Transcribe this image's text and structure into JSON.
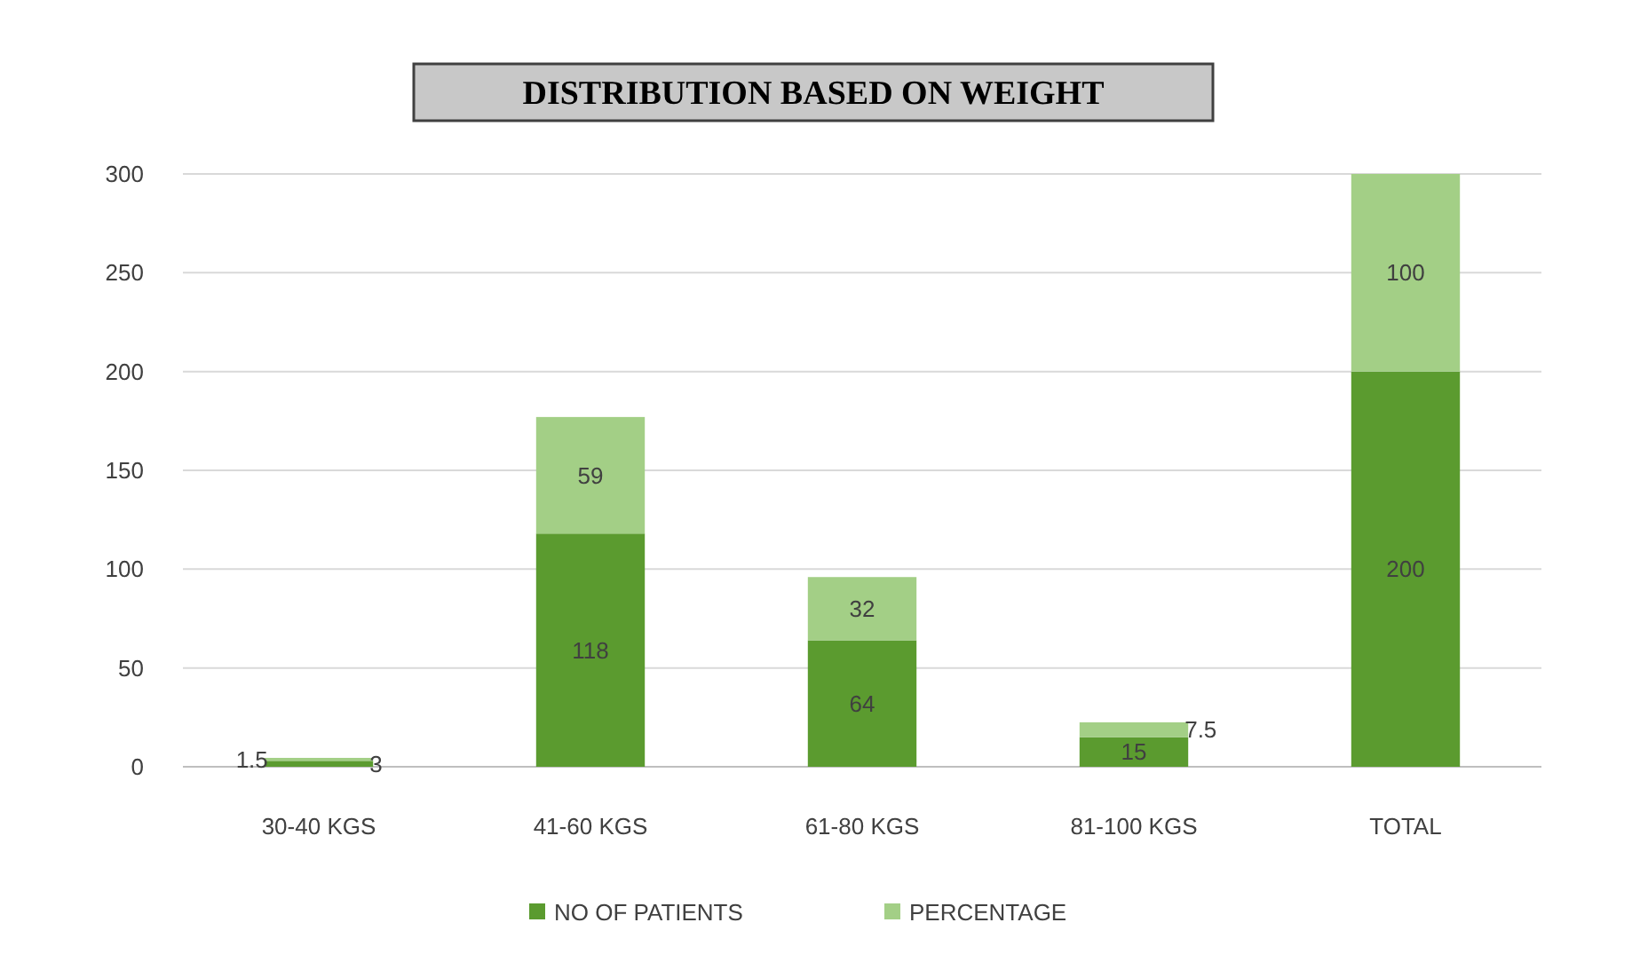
{
  "chart_data": {
    "type": "bar",
    "title": "DISTRIBUTION  BASED ON WEIGHT",
    "categories": [
      "30-40 KGS",
      "41-60 KGS",
      "61-80 KGS",
      "81-100 KGS",
      "TOTAL"
    ],
    "stacked": true,
    "series": [
      {
        "name": "NO OF PATIENTS",
        "color": "#5b9b2f",
        "values": [
          3,
          118,
          64,
          15,
          200
        ]
      },
      {
        "name": "PERCENTAGE",
        "color": "#a3cf86",
        "values": [
          1.5,
          59,
          32,
          7.5,
          100
        ]
      }
    ],
    "ylim": [
      0,
      300
    ],
    "yticks": [
      0,
      50,
      100,
      150,
      200,
      250,
      300
    ],
    "grid": "y",
    "legend": "bottom",
    "data_labels": true
  }
}
